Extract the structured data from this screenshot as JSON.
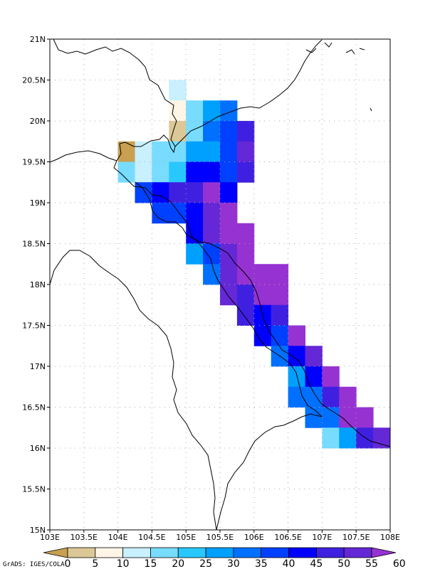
{
  "credit": "GrADS: IGES/COLA",
  "map": {
    "lon_range": [
      103,
      108
    ],
    "lat_range": [
      15,
      21
    ],
    "x_ticks": [
      {
        "value": 103,
        "label": "103E"
      },
      {
        "value": 103.5,
        "label": "103.5E"
      },
      {
        "value": 104,
        "label": "104E"
      },
      {
        "value": 104.5,
        "label": "104.5E"
      },
      {
        "value": 105,
        "label": "105E"
      },
      {
        "value": 105.5,
        "label": "105.5E"
      },
      {
        "value": 106,
        "label": "106E"
      },
      {
        "value": 106.5,
        "label": "106.5E"
      },
      {
        "value": 107,
        "label": "107E"
      },
      {
        "value": 107.5,
        "label": "107.5E"
      },
      {
        "value": 108,
        "label": "108E"
      }
    ],
    "y_ticks": [
      {
        "value": 15,
        "label": "15N"
      },
      {
        "value": 15.5,
        "label": "15.5N"
      },
      {
        "value": 16,
        "label": "16N"
      },
      {
        "value": 16.5,
        "label": "16.5N"
      },
      {
        "value": 17,
        "label": "17N"
      },
      {
        "value": 17.5,
        "label": "17.5N"
      },
      {
        "value": 18,
        "label": "18N"
      },
      {
        "value": 18.5,
        "label": "18.5N"
      },
      {
        "value": 19,
        "label": "19N"
      },
      {
        "value": 19.5,
        "label": "19.5N"
      },
      {
        "value": 20,
        "label": "20N"
      },
      {
        "value": 20.5,
        "label": "20.5N"
      },
      {
        "value": 21,
        "label": "21N"
      }
    ],
    "grid_step_deg": 0.25,
    "grid_lines": "dotted"
  },
  "colorbar": {
    "levels": [
      "0",
      "5",
      "10",
      "15",
      "20",
      "25",
      "30",
      "35",
      "40",
      "45",
      "50",
      "55",
      "60"
    ],
    "colors": [
      "#c8a050",
      "#dcc896",
      "#fff5e6",
      "#c8f0ff",
      "#78dcff",
      "#28c8ff",
      "#00a0ff",
      "#0070ff",
      "#0040ff",
      "#0000ff",
      "#4020e0",
      "#6428d6",
      "#9632d2"
    ]
  },
  "chart_data": {
    "type": "heatmap",
    "x_unit": "degrees east",
    "y_unit": "degrees north",
    "cell_size_deg": 0.25,
    "cells": [
      [
        104.75,
        20.25,
        3
      ],
      [
        104.75,
        20.0,
        2
      ],
      [
        105.0,
        20.0,
        4
      ],
      [
        105.25,
        20.0,
        6
      ],
      [
        105.5,
        20.0,
        7
      ],
      [
        104.75,
        19.75,
        1
      ],
      [
        105.0,
        19.75,
        4
      ],
      [
        105.25,
        19.75,
        7
      ],
      [
        105.5,
        19.75,
        8
      ],
      [
        105.75,
        19.75,
        10
      ],
      [
        104.0,
        19.5,
        0
      ],
      [
        104.25,
        19.5,
        3
      ],
      [
        104.5,
        19.5,
        4
      ],
      [
        104.75,
        19.5,
        4
      ],
      [
        105.0,
        19.5,
        6
      ],
      [
        105.25,
        19.5,
        6
      ],
      [
        105.5,
        19.5,
        8
      ],
      [
        105.75,
        19.5,
        11
      ],
      [
        104.0,
        19.25,
        4
      ],
      [
        104.25,
        19.25,
        3
      ],
      [
        104.5,
        19.25,
        4
      ],
      [
        104.75,
        19.25,
        5
      ],
      [
        105.0,
        19.25,
        9
      ],
      [
        105.25,
        19.25,
        9
      ],
      [
        105.5,
        19.25,
        8
      ],
      [
        105.75,
        19.25,
        10
      ],
      [
        104.25,
        19.0,
        8
      ],
      [
        104.5,
        19.0,
        9
      ],
      [
        104.75,
        19.0,
        10
      ],
      [
        105.0,
        19.0,
        10
      ],
      [
        105.25,
        19.0,
        12
      ],
      [
        105.5,
        19.0,
        9
      ],
      [
        104.5,
        18.75,
        8
      ],
      [
        104.75,
        18.75,
        8
      ],
      [
        105.0,
        18.75,
        9
      ],
      [
        105.25,
        18.75,
        11
      ],
      [
        105.5,
        18.75,
        12
      ],
      [
        105.0,
        18.5,
        9
      ],
      [
        105.25,
        18.5,
        11
      ],
      [
        105.5,
        18.5,
        12
      ],
      [
        105.75,
        18.5,
        12
      ],
      [
        105.0,
        18.25,
        6
      ],
      [
        105.25,
        18.25,
        8
      ],
      [
        105.5,
        18.25,
        11
      ],
      [
        105.75,
        18.25,
        12
      ],
      [
        105.25,
        18.0,
        7
      ],
      [
        105.5,
        18.0,
        11
      ],
      [
        105.75,
        18.0,
        12
      ],
      [
        106.0,
        18.0,
        12
      ],
      [
        106.25,
        18.0,
        12
      ],
      [
        105.5,
        17.75,
        11
      ],
      [
        105.75,
        17.75,
        10
      ],
      [
        106.0,
        17.75,
        12
      ],
      [
        106.25,
        17.75,
        12
      ],
      [
        105.75,
        17.5,
        10
      ],
      [
        106.0,
        17.5,
        9
      ],
      [
        106.25,
        17.5,
        10
      ],
      [
        106.0,
        17.25,
        9
      ],
      [
        106.25,
        17.25,
        8
      ],
      [
        106.5,
        17.25,
        12
      ],
      [
        106.25,
        17.0,
        7
      ],
      [
        106.5,
        17.0,
        9
      ],
      [
        106.75,
        17.0,
        11
      ],
      [
        106.5,
        16.75,
        6
      ],
      [
        106.75,
        16.75,
        9
      ],
      [
        107.0,
        16.75,
        12
      ],
      [
        106.5,
        16.5,
        7
      ],
      [
        106.75,
        16.5,
        7
      ],
      [
        107.0,
        16.5,
        10
      ],
      [
        107.25,
        16.5,
        12
      ],
      [
        106.75,
        16.25,
        7
      ],
      [
        107.0,
        16.25,
        7
      ],
      [
        107.25,
        16.25,
        12
      ],
      [
        107.5,
        16.25,
        12
      ],
      [
        107.0,
        16.0,
        4
      ],
      [
        107.25,
        16.0,
        6
      ],
      [
        107.5,
        16.0,
        10
      ],
      [
        107.75,
        16.0,
        11
      ]
    ]
  }
}
